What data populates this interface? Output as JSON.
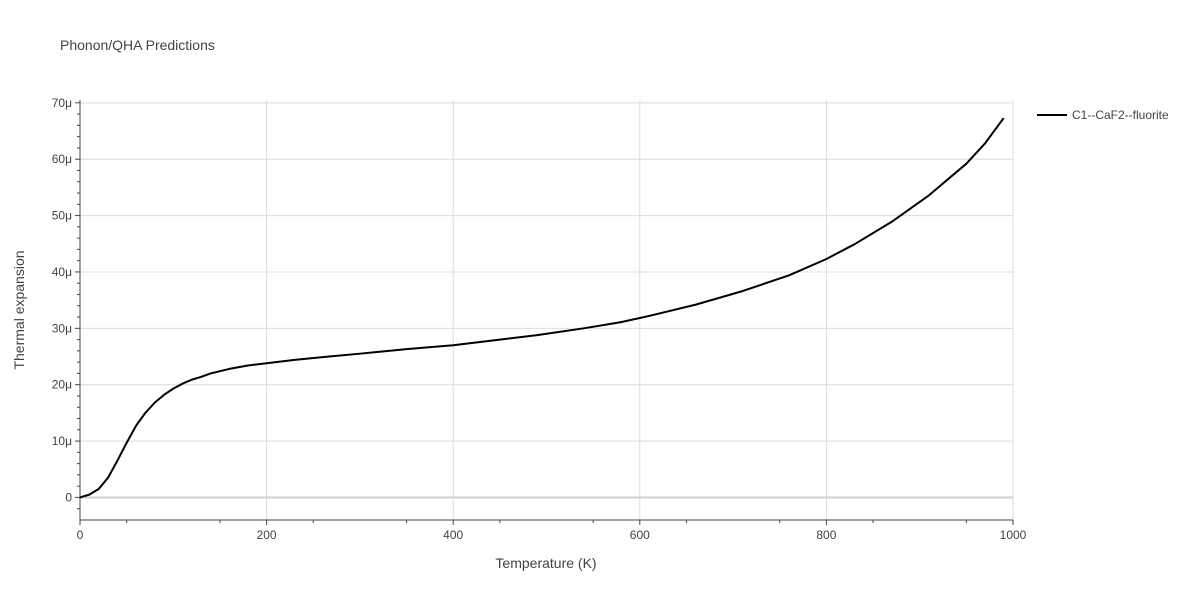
{
  "chart_data": {
    "type": "line",
    "title": "Phonon/QHA Predictions",
    "xlabel": "Temperature (K)",
    "ylabel": "Thermal expansion",
    "xlim": [
      0,
      1000
    ],
    "ylim": [
      -4,
      70.5
    ],
    "grid": true,
    "legend_position": "top-right outside",
    "x_ticks": [
      0,
      200,
      400,
      600,
      800,
      1000
    ],
    "x_tick_labels": [
      "0",
      "200",
      "400",
      "600",
      "800",
      "1000"
    ],
    "y_ticks": [
      0,
      10,
      20,
      30,
      40,
      50,
      60,
      70
    ],
    "y_tick_labels": [
      "0",
      "10μ",
      "20μ",
      "30μ",
      "40μ",
      "50μ",
      "60μ",
      "70μ"
    ],
    "series": [
      {
        "name": "C1--CaF2--fluorite",
        "color": "#000000",
        "x": [
          0,
          10,
          20,
          30,
          40,
          50,
          60,
          70,
          80,
          90,
          100,
          110,
          120,
          130,
          140,
          150,
          160,
          180,
          200,
          230,
          260,
          300,
          350,
          400,
          420,
          450,
          490,
          540,
          580,
          610,
          660,
          710,
          760,
          800,
          830,
          870,
          910,
          950,
          970,
          990
        ],
        "values": [
          0,
          0.5,
          1.5,
          3.5,
          6.5,
          9.7,
          12.7,
          15.0,
          16.8,
          18.2,
          19.3,
          20.2,
          20.9,
          21.4,
          22.0,
          22.4,
          22.8,
          23.4,
          23.8,
          24.4,
          24.9,
          25.5,
          26.3,
          27.0,
          27.4,
          28.0,
          28.8,
          30.0,
          31.1,
          32.2,
          34.2,
          36.6,
          39.4,
          42.3,
          44.9,
          48.9,
          53.6,
          59.2,
          62.8,
          67.3
        ]
      }
    ]
  }
}
